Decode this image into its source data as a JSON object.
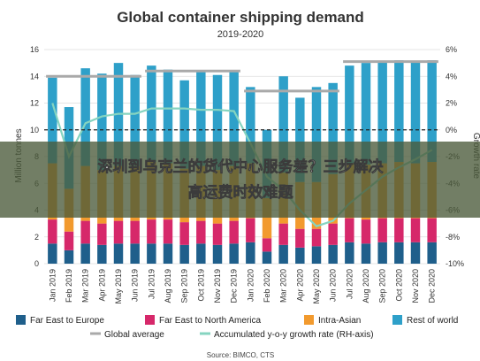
{
  "chart_data": {
    "type": "bar",
    "title": "Global container shipping demand",
    "subtitle": "2019-2020",
    "ylabel": "Million tonnes",
    "y2label": "Growth rate",
    "ylim": [
      0,
      16
    ],
    "y2lim": [
      -10,
      6
    ],
    "yticks": [
      "0",
      "2",
      "4",
      "6",
      "8",
      "10",
      "12",
      "14",
      "16"
    ],
    "y2ticks": [
      "6%",
      "4%",
      "2%",
      "0%",
      "-2%",
      "-4%",
      "-6%",
      "-8%",
      "-10%"
    ],
    "categories": [
      "Jan 2019",
      "Feb 2019",
      "Mar 2019",
      "Apr 2019",
      "May 2019",
      "Jun 2019",
      "Jul 2019",
      "Aug 2019",
      "Sep 2019",
      "Oct 2019",
      "Nov 2019",
      "Dec 2019",
      "Jan 2020",
      "Feb 2020",
      "Mar 2020",
      "Apr 2020",
      "May 2020",
      "Jun 2020",
      "Jul 2020",
      "Aug 2020",
      "Sep 2020",
      "Oct 2020",
      "Nov 2020",
      "Dec 2020"
    ],
    "series": [
      {
        "name": "Far East to Europe",
        "color": "#1f5f8b",
        "values": [
          1.5,
          1.0,
          1.5,
          1.4,
          1.5,
          1.5,
          1.5,
          1.5,
          1.4,
          1.5,
          1.4,
          1.5,
          1.6,
          0.9,
          1.4,
          1.2,
          1.3,
          1.4,
          1.6,
          1.5,
          1.6,
          1.6,
          1.6,
          1.6
        ]
      },
      {
        "name": "Far East to North America",
        "color": "#d6286a",
        "values": [
          1.8,
          1.4,
          1.7,
          1.6,
          1.7,
          1.7,
          1.8,
          1.8,
          1.7,
          1.7,
          1.6,
          1.7,
          1.8,
          1.0,
          1.6,
          1.4,
          1.3,
          1.6,
          1.8,
          1.8,
          1.8,
          1.8,
          1.8,
          1.8
        ]
      },
      {
        "name": "Intra-Asian",
        "color": "#f29a2e",
        "values": [
          4.2,
          3.2,
          4.1,
          4.0,
          4.1,
          4.1,
          4.3,
          4.2,
          4.0,
          4.1,
          4.0,
          4.1,
          4.1,
          3.0,
          3.8,
          3.5,
          3.5,
          3.7,
          4.1,
          4.1,
          4.1,
          4.2,
          4.1,
          4.2
        ]
      },
      {
        "name": "Rest of world",
        "color": "#2ea0c9",
        "values": [
          6.4,
          6.1,
          7.3,
          7.2,
          7.7,
          6.8,
          7.2,
          7.0,
          6.6,
          7.1,
          7.1,
          7.1,
          5.7,
          5.1,
          7.2,
          6.3,
          7.1,
          6.8,
          7.3,
          7.6,
          7.6,
          7.6,
          7.6,
          7.6
        ]
      },
      {
        "name": "Global average",
        "color": "#a9a9a9",
        "segments": [
          {
            "from": 0,
            "to": 5,
            "value": 14.0
          },
          {
            "from": 6,
            "to": 11,
            "value": 14.4
          },
          {
            "from": 12,
            "to": 17,
            "value": 12.9
          },
          {
            "from": 18,
            "to": 23,
            "value": 15.1
          }
        ]
      },
      {
        "name": "Accumulated y-o-y growth rate (RH-axis)",
        "color": "#86d4c0",
        "axis": "right",
        "values": [
          2.0,
          -2.0,
          0.5,
          1.0,
          1.2,
          1.2,
          1.6,
          1.6,
          1.6,
          1.5,
          1.5,
          1.4,
          -1.0,
          -3.5,
          -4.5,
          -6.0,
          -7.2,
          -6.8,
          -5.5,
          -4.5,
          -3.5,
          -2.8,
          -2.2,
          -1.5
        ]
      }
    ],
    "legend": {
      "position": "bottom"
    },
    "source": "Source: BIMCO, CTS"
  },
  "banner": {
    "line1": "深圳到乌克兰的货代中心服务差？三步解决",
    "line2": "高运费时效难题"
  },
  "colors": {
    "banner_bg": "#4a5a3a",
    "zero_line": "#222222"
  }
}
